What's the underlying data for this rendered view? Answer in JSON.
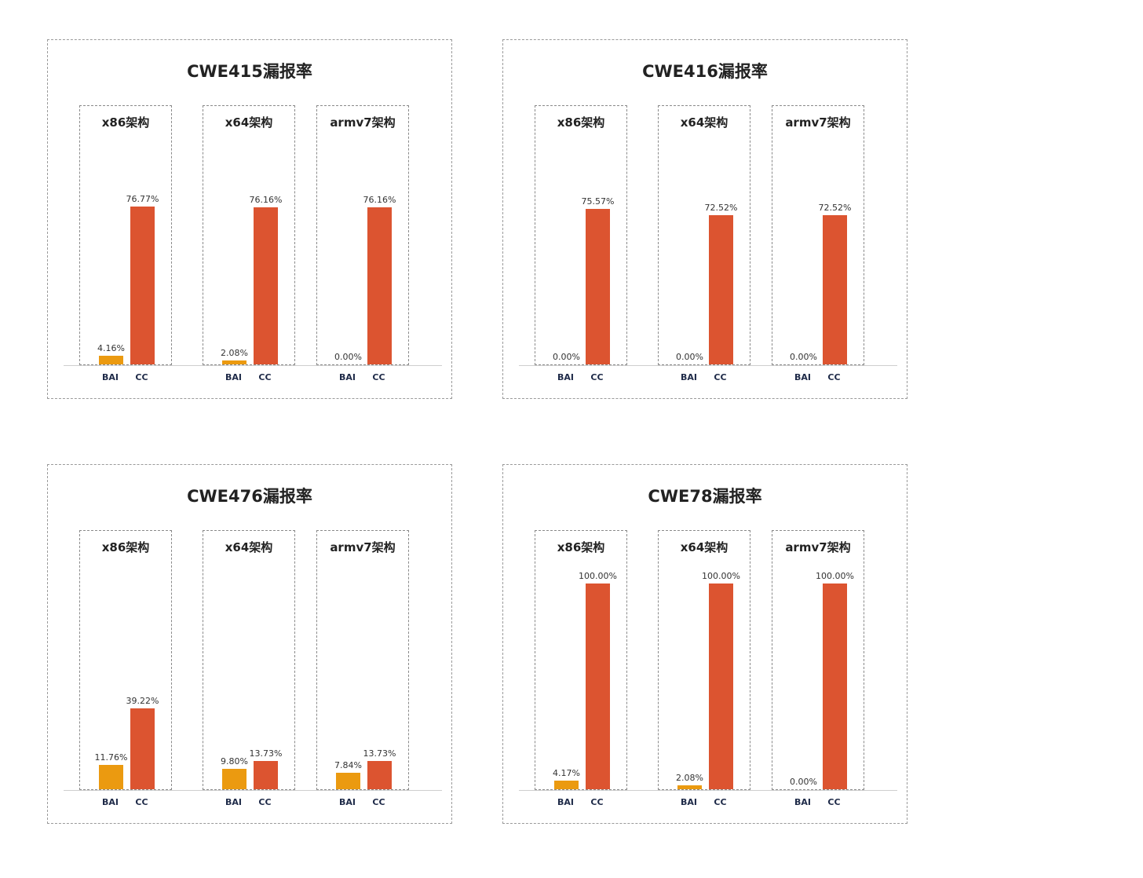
{
  "chart_data": [
    {
      "type": "bar",
      "title": "CWE415漏报率",
      "categories": [
        "BAI",
        "CC"
      ],
      "groups": [
        {
          "name": "x86架构",
          "values": [
            4.16,
            76.77
          ],
          "labels": [
            "4.16%",
            "76.77%"
          ]
        },
        {
          "name": "x64架构",
          "values": [
            2.08,
            76.16
          ],
          "labels": [
            "2.08%",
            "76.16%"
          ]
        },
        {
          "name": "armv7架构",
          "values": [
            0.0,
            76.16
          ],
          "labels": [
            "0.00%",
            "76.16%"
          ]
        }
      ],
      "ylim": [
        0,
        100
      ]
    },
    {
      "type": "bar",
      "title": "CWE416漏报率",
      "categories": [
        "BAI",
        "CC"
      ],
      "groups": [
        {
          "name": "x86架构",
          "values": [
            0.0,
            75.57
          ],
          "labels": [
            "0.00%",
            "75.57%"
          ]
        },
        {
          "name": "x64架构",
          "values": [
            0.0,
            72.52
          ],
          "labels": [
            "0.00%",
            "72.52%"
          ]
        },
        {
          "name": "armv7架构",
          "values": [
            0.0,
            72.52
          ],
          "labels": [
            "0.00%",
            "72.52%"
          ]
        }
      ],
      "ylim": [
        0,
        100
      ]
    },
    {
      "type": "bar",
      "title": "CWE476漏报率",
      "categories": [
        "BAI",
        "CC"
      ],
      "groups": [
        {
          "name": "x86架构",
          "values": [
            11.76,
            39.22
          ],
          "labels": [
            "11.76%",
            "39.22%"
          ]
        },
        {
          "name": "x64架构",
          "values": [
            9.8,
            13.73
          ],
          "labels": [
            "9.80%",
            "13.73%"
          ]
        },
        {
          "name": "armv7架构",
          "values": [
            7.84,
            13.73
          ],
          "labels": [
            "7.84%",
            "13.73%"
          ]
        }
      ],
      "ylim": [
        0,
        100
      ]
    },
    {
      "type": "bar",
      "title": "CWE78漏报率",
      "categories": [
        "BAI",
        "CC"
      ],
      "groups": [
        {
          "name": "x86架构",
          "values": [
            4.17,
            100.0
          ],
          "labels": [
            "4.17%",
            "100.00%"
          ]
        },
        {
          "name": "x64架构",
          "values": [
            2.08,
            100.0
          ],
          "labels": [
            "2.08%",
            "100.00%"
          ]
        },
        {
          "name": "armv7架构",
          "values": [
            0.0,
            100.0
          ],
          "labels": [
            "0.00%",
            "100.00%"
          ]
        }
      ],
      "ylim": [
        0,
        100
      ]
    }
  ],
  "colors": {
    "BAI": "#eb9a10",
    "CC": "#dc5430"
  }
}
